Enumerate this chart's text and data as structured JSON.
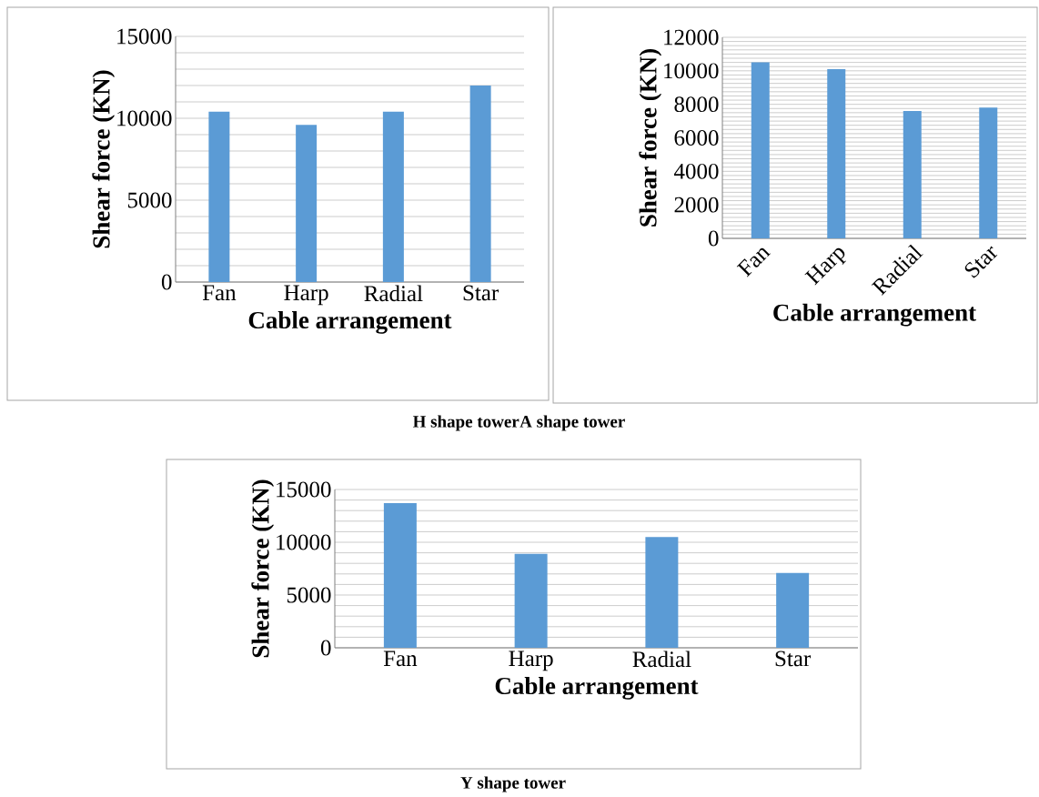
{
  "chart_data": [
    {
      "type": "bar",
      "xlabel": "Cable arrangement",
      "ylabel": "Shear force (KN)",
      "categories": [
        "Fan",
        "Harp",
        "Radial",
        "Star"
      ],
      "values": [
        10400,
        9600,
        10400,
        12000
      ],
      "color": "#5b9bd5",
      "ylim": [
        0,
        15000
      ],
      "yticks": [
        0,
        {
          "value": 1000,
          "label": null
        },
        {
          "value": 2000,
          "label": null
        },
        {
          "value": 3000,
          "label": null
        },
        {
          "value": 4000,
          "label": null
        },
        5000,
        {
          "value": 6000,
          "label": null
        },
        {
          "value": 7000,
          "label": null
        },
        {
          "value": 8000,
          "label": null
        },
        {
          "value": 9000,
          "label": null
        },
        10000,
        {
          "value": 11000,
          "label": null
        },
        {
          "value": 12000,
          "label": null
        },
        {
          "value": 13000,
          "label": null
        },
        {
          "value": 14000,
          "label": null
        },
        15000
      ],
      "grid": "y",
      "annotations": [
        "H shape tower"
      ]
    },
    {
      "type": "bar",
      "xlabel": "Cable arrangement",
      "ylabel": "Shear force (KN)",
      "categories": [
        "Fan",
        "Harp",
        "Radial",
        "Star"
      ],
      "values": [
        10500,
        10100,
        7600,
        7800
      ],
      "color": "#5b9bd5",
      "ylim": [
        0,
        12000
      ],
      "yticks": [
        0,
        {
          "value": 250,
          "label": null
        },
        {
          "value": 500,
          "label": null
        },
        {
          "value": 750,
          "label": null
        },
        {
          "value": 1000,
          "label": null
        },
        {
          "value": 1250,
          "label": null
        },
        {
          "value": 1500,
          "label": null
        },
        {
          "value": 1750,
          "label": null
        },
        2000,
        {
          "value": 2250,
          "label": null
        },
        {
          "value": 2500,
          "label": null
        },
        {
          "value": 2750,
          "label": null
        },
        {
          "value": 3000,
          "label": null
        },
        {
          "value": 3250,
          "label": null
        },
        {
          "value": 3500,
          "label": null
        },
        {
          "value": 3750,
          "label": null
        },
        4000,
        {
          "value": 4250,
          "label": null
        },
        {
          "value": 4500,
          "label": null
        },
        {
          "value": 4750,
          "label": null
        },
        {
          "value": 5000,
          "label": null
        },
        {
          "value": 5250,
          "label": null
        },
        {
          "value": 5500,
          "label": null
        },
        {
          "value": 5750,
          "label": null
        },
        6000,
        {
          "value": 6250,
          "label": null
        },
        {
          "value": 6500,
          "label": null
        },
        {
          "value": 6750,
          "label": null
        },
        {
          "value": 7000,
          "label": null
        },
        {
          "value": 7250,
          "label": null
        },
        {
          "value": 7500,
          "label": null
        },
        {
          "value": 7750,
          "label": null
        },
        8000,
        {
          "value": 8250,
          "label": null
        },
        {
          "value": 8500,
          "label": null
        },
        {
          "value": 8750,
          "label": null
        },
        {
          "value": 9000,
          "label": null
        },
        {
          "value": 9250,
          "label": null
        },
        {
          "value": 9500,
          "label": null
        },
        {
          "value": 9750,
          "label": null
        },
        10000,
        {
          "value": 10250,
          "label": null
        },
        {
          "value": 10500,
          "label": null
        },
        {
          "value": 10750,
          "label": null
        },
        {
          "value": 11000,
          "label": null
        },
        {
          "value": 11250,
          "label": null
        },
        {
          "value": 11500,
          "label": null
        },
        {
          "value": 11750,
          "label": null
        },
        12000
      ],
      "grid": "y",
      "annotations": [
        "A shape tower"
      ]
    },
    {
      "type": "bar",
      "xlabel": "Cable arrangement",
      "ylabel": "Shear force (KN)",
      "categories": [
        "Fan",
        "Harp",
        "Radial",
        "Star"
      ],
      "values": [
        13700,
        8900,
        10500,
        7100
      ],
      "color": "#5b9bd5",
      "ylim": [
        0,
        15000
      ],
      "yticks": [
        0,
        {
          "value": 1000,
          "label": null
        },
        {
          "value": 2000,
          "label": null
        },
        {
          "value": 3000,
          "label": null
        },
        {
          "value": 4000,
          "label": null
        },
        5000,
        {
          "value": 6000,
          "label": null
        },
        {
          "value": 7000,
          "label": null
        },
        {
          "value": 8000,
          "label": null
        },
        {
          "value": 9000,
          "label": null
        },
        10000,
        {
          "value": 11000,
          "label": null
        },
        {
          "value": 12000,
          "label": null
        },
        {
          "value": 13000,
          "label": null
        },
        {
          "value": 14000,
          "label": null
        },
        15000
      ],
      "grid": "y",
      "annotations": [
        "Y shape tower"
      ]
    }
  ]
}
